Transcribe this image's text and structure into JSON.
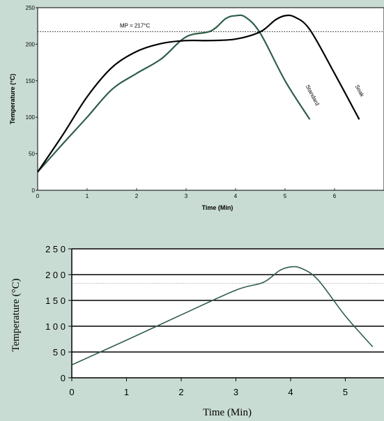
{
  "chart_data": [
    {
      "type": "line",
      "title": "",
      "xlabel": "Time (Min)",
      "ylabel": "Temperature (°C)",
      "xlim": [
        0,
        7
      ],
      "ylim": [
        0,
        250
      ],
      "x_ticks": [
        0,
        1,
        2,
        3,
        4,
        5,
        6
      ],
      "y_ticks": [
        0,
        50,
        100,
        150,
        200,
        250
      ],
      "grid": false,
      "reference_line": {
        "label": "MP = 217°C",
        "value": 217
      },
      "series": [
        {
          "name": "Standard",
          "color": "#2f5e48",
          "x": [
            0,
            0.5,
            1,
            1.5,
            2,
            2.5,
            3,
            3.5,
            3.8,
            4,
            4.2,
            4.5,
            5,
            5.5
          ],
          "y": [
            25,
            63,
            100,
            138,
            160,
            180,
            210,
            218,
            235,
            239,
            237,
            215,
            150,
            97
          ]
        },
        {
          "name": "Soak",
          "color": "#000000",
          "x": [
            0,
            0.5,
            1,
            1.5,
            2,
            2.5,
            3,
            3.5,
            4,
            4.5,
            4.8,
            5,
            5.2,
            5.5,
            6,
            6.5
          ],
          "y": [
            25,
            75,
            128,
            168,
            190,
            201,
            205,
            205,
            207,
            217,
            233,
            239,
            237,
            220,
            160,
            97
          ]
        }
      ]
    },
    {
      "type": "line",
      "title": "",
      "xlabel": "Time (Min)",
      "ylabel": "Temperature (°C)",
      "xlim": [
        0,
        5.7
      ],
      "ylim": [
        0,
        250
      ],
      "x_ticks": [
        0,
        1,
        2,
        3,
        4,
        5
      ],
      "y_ticks": [
        0,
        50,
        100,
        150,
        200,
        250
      ],
      "y_tick_labels": [
        "0",
        "5 0",
        "1 0 0",
        "1 5 0",
        "2 0 0",
        "2 5 0"
      ],
      "grid": true,
      "reference_line": {
        "value": 183
      },
      "series": [
        {
          "color": "#2f5e48",
          "x": [
            0,
            1,
            2,
            3,
            3.5,
            3.8,
            4,
            4.2,
            4.5,
            5,
            5.5
          ],
          "y": [
            25,
            73,
            122,
            170,
            185,
            208,
            215,
            212,
            190,
            120,
            60
          ]
        }
      ]
    }
  ]
}
